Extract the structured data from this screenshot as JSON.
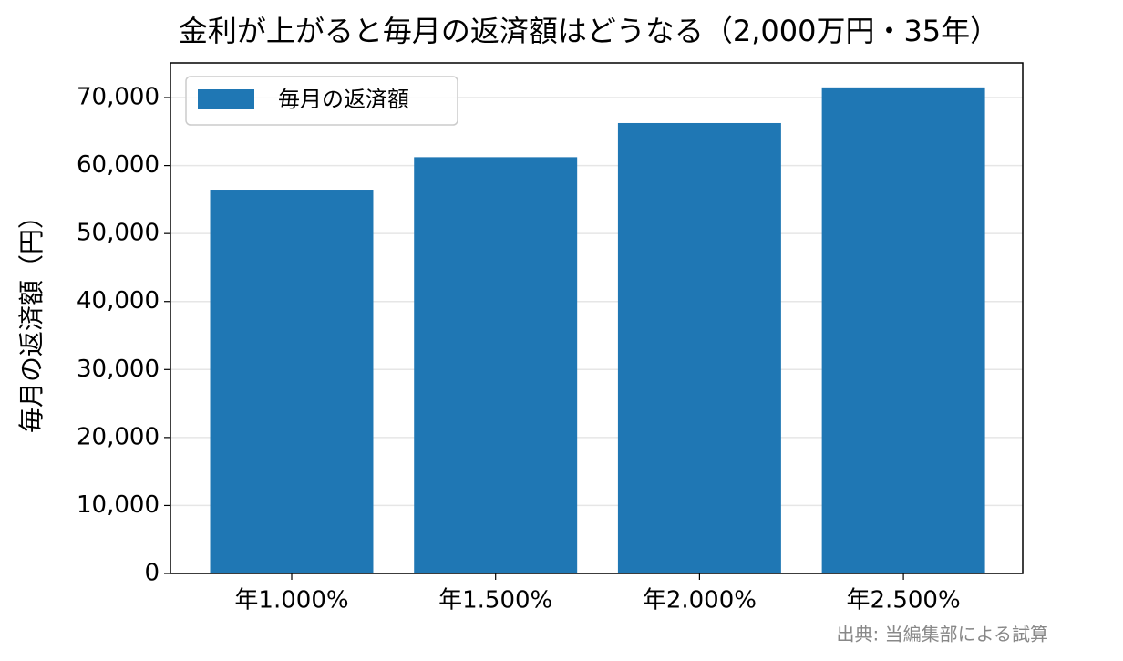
{
  "chart_data": {
    "type": "bar",
    "title": "金利が上がると毎月の返済額はどうなる（2,000万円・35年）",
    "ylabel": "毎月の返済額（円）",
    "source": "出典: 当編集部による試算",
    "categories": [
      "年1.000%",
      "年1.500%",
      "年2.000%",
      "年2.500%"
    ],
    "series": [
      {
        "name": "毎月の返済額",
        "color": "#1f77b4",
        "values": [
          56457,
          61236,
          66252,
          71499
        ]
      }
    ],
    "ylim": [
      0,
      75100
    ],
    "yticks": [
      0,
      {
        "value": 10000,
        "label": "10,000"
      },
      {
        "value": 20000,
        "label": "20,000"
      },
      {
        "value": 30000,
        "label": "30,000"
      },
      {
        "value": 40000,
        "label": "40,000"
      },
      {
        "value": 50000,
        "label": "50,000"
      },
      {
        "value": 60000,
        "label": "60,000"
      },
      {
        "value": 70000,
        "label": "70,000"
      }
    ],
    "grid": true,
    "legend": "upper left"
  }
}
